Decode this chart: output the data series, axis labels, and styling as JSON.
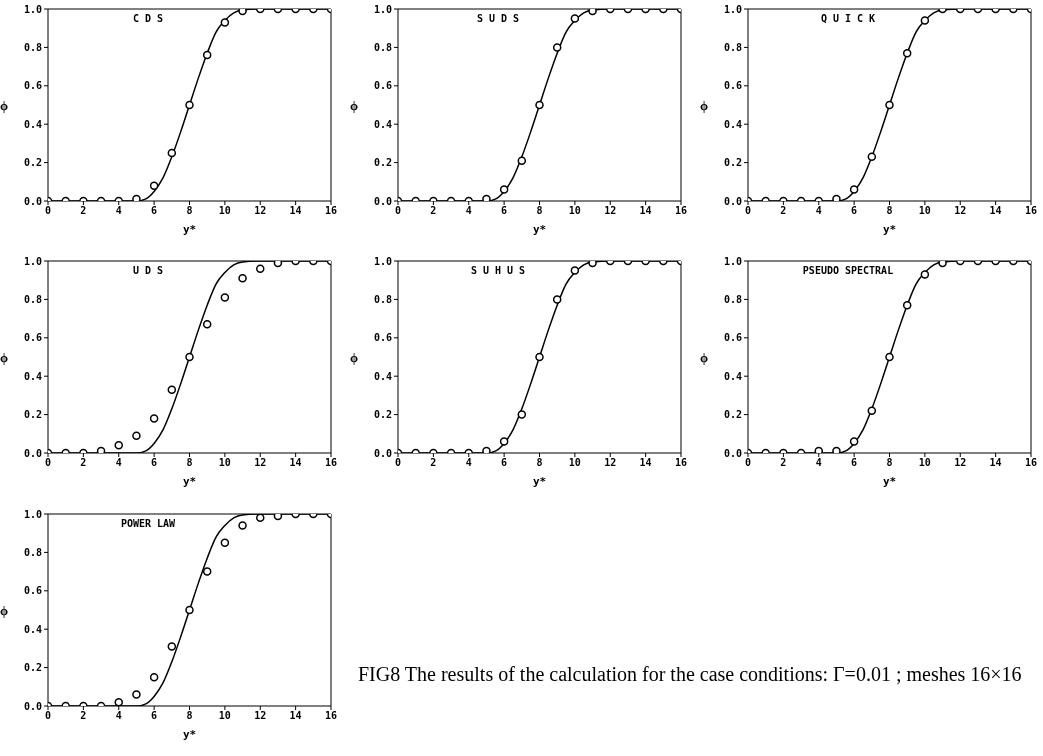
{
  "chart_data": [
    {
      "type": "line",
      "title": "C D S",
      "xlabel": "y*",
      "ylabel": "ϕ",
      "xlim": [
        0,
        16
      ],
      "xticks": [
        0,
        2,
        4,
        6,
        8,
        10,
        12,
        14,
        16
      ],
      "ylim": [
        0,
        1
      ],
      "yticks": [
        {
          "value": 0,
          "label": "0.0"
        },
        {
          "value": 0.2,
          "label": "0.2"
        },
        {
          "value": 0.4,
          "label": "0.4"
        },
        {
          "value": 0.6,
          "label": "0.6"
        },
        {
          "value": 0.8,
          "label": "0.8"
        },
        {
          "value": 1,
          "label": "1.0"
        }
      ],
      "grid": false,
      "series": [
        {
          "color": "#000000",
          "marker": "none",
          "x": [
            0,
            1,
            2,
            3,
            4,
            5,
            5.5,
            6,
            6.5,
            7,
            7.5,
            8,
            8.5,
            9,
            9.5,
            10,
            10.5,
            11,
            12,
            13,
            14,
            15,
            16
          ],
          "values": [
            0,
            0,
            0,
            0,
            0,
            0,
            0.01,
            0.05,
            0.12,
            0.23,
            0.36,
            0.5,
            0.64,
            0.77,
            0.88,
            0.94,
            0.98,
            0.995,
            1,
            1,
            1,
            1,
            1
          ]
        },
        {
          "type": "scatter",
          "color": "#000000",
          "marker": "circle",
          "x": [
            0,
            1,
            2,
            3,
            4,
            5,
            6,
            7,
            8,
            9,
            10,
            11,
            12,
            13,
            14,
            15,
            16
          ],
          "values": [
            0,
            0,
            0,
            0,
            0,
            0.01,
            0.08,
            0.25,
            0.5,
            0.76,
            0.93,
            0.99,
            1,
            1,
            1,
            1,
            1
          ]
        }
      ]
    },
    {
      "type": "line",
      "title": "S U D S",
      "xlabel": "y*",
      "ylabel": "ϕ",
      "xlim": [
        0,
        16
      ],
      "xticks": [
        0,
        2,
        4,
        6,
        8,
        10,
        12,
        14,
        16
      ],
      "ylim": [
        0,
        1
      ],
      "yticks": [
        {
          "value": 0,
          "label": "0.0"
        },
        {
          "value": 0.2,
          "label": "0.2"
        },
        {
          "value": 0.4,
          "label": "0.4"
        },
        {
          "value": 0.6,
          "label": "0.6"
        },
        {
          "value": 0.8,
          "label": "0.8"
        },
        {
          "value": 1,
          "label": "1.0"
        }
      ],
      "grid": false,
      "series": [
        {
          "color": "#000000",
          "marker": "none",
          "x": [
            0,
            1,
            2,
            3,
            4,
            5,
            5.5,
            6,
            6.5,
            7,
            7.5,
            8,
            8.5,
            9,
            9.5,
            10,
            10.5,
            11,
            12,
            13,
            14,
            15,
            16
          ],
          "values": [
            0,
            0,
            0,
            0,
            0,
            0,
            0.01,
            0.05,
            0.12,
            0.23,
            0.36,
            0.5,
            0.64,
            0.77,
            0.88,
            0.94,
            0.98,
            0.995,
            1,
            1,
            1,
            1,
            1
          ]
        },
        {
          "type": "scatter",
          "color": "#000000",
          "marker": "circle",
          "x": [
            0,
            1,
            2,
            3,
            4,
            5,
            6,
            7,
            8,
            9,
            10,
            11,
            12,
            13,
            14,
            15,
            16
          ],
          "values": [
            0,
            0,
            0,
            0,
            0,
            0.01,
            0.06,
            0.21,
            0.5,
            0.8,
            0.95,
            0.99,
            1,
            1,
            1,
            1,
            1
          ]
        }
      ]
    },
    {
      "type": "line",
      "title": "Q U I C K",
      "xlabel": "y*",
      "ylabel": "ϕ",
      "xlim": [
        0,
        16
      ],
      "xticks": [
        0,
        2,
        4,
        6,
        8,
        10,
        12,
        14,
        16
      ],
      "ylim": [
        0,
        1
      ],
      "yticks": [
        {
          "value": 0,
          "label": "0.0"
        },
        {
          "value": 0.2,
          "label": "0.2"
        },
        {
          "value": 0.4,
          "label": "0.4"
        },
        {
          "value": 0.6,
          "label": "0.6"
        },
        {
          "value": 0.8,
          "label": "0.8"
        },
        {
          "value": 1,
          "label": "1.0"
        }
      ],
      "grid": false,
      "series": [
        {
          "color": "#000000",
          "marker": "none",
          "x": [
            0,
            1,
            2,
            3,
            4,
            5,
            5.5,
            6,
            6.5,
            7,
            7.5,
            8,
            8.5,
            9,
            9.5,
            10,
            10.5,
            11,
            12,
            13,
            14,
            15,
            16
          ],
          "values": [
            0,
            0,
            0,
            0,
            0,
            0,
            0.01,
            0.05,
            0.12,
            0.23,
            0.36,
            0.5,
            0.64,
            0.77,
            0.88,
            0.94,
            0.98,
            0.995,
            1,
            1,
            1,
            1,
            1
          ]
        },
        {
          "type": "scatter",
          "color": "#000000",
          "marker": "circle",
          "x": [
            0,
            1,
            2,
            3,
            4,
            5,
            6,
            7,
            8,
            9,
            10,
            11,
            12,
            13,
            14,
            15,
            16
          ],
          "values": [
            0,
            0,
            0,
            0,
            0,
            0.01,
            0.06,
            0.23,
            0.5,
            0.77,
            0.94,
            1,
            1,
            1,
            1,
            1,
            1
          ]
        }
      ]
    },
    {
      "type": "line",
      "title": "U D S",
      "xlabel": "y*",
      "ylabel": "ϕ",
      "xlim": [
        0,
        16
      ],
      "xticks": [
        0,
        2,
        4,
        6,
        8,
        10,
        12,
        14,
        16
      ],
      "ylim": [
        0,
        1
      ],
      "yticks": [
        {
          "value": 0,
          "label": "0.0"
        },
        {
          "value": 0.2,
          "label": "0.2"
        },
        {
          "value": 0.4,
          "label": "0.4"
        },
        {
          "value": 0.6,
          "label": "0.6"
        },
        {
          "value": 0.8,
          "label": "0.8"
        },
        {
          "value": 1,
          "label": "1.0"
        }
      ],
      "grid": false,
      "series": [
        {
          "color": "#000000",
          "marker": "none",
          "x": [
            0,
            1,
            2,
            3,
            4,
            5,
            5.5,
            6,
            6.5,
            7,
            7.5,
            8,
            8.5,
            9,
            9.5,
            10,
            10.5,
            11,
            12,
            13,
            14,
            15,
            16
          ],
          "values": [
            0,
            0,
            0,
            0,
            0,
            0,
            0.01,
            0.05,
            0.12,
            0.23,
            0.36,
            0.5,
            0.64,
            0.77,
            0.88,
            0.94,
            0.98,
            0.995,
            1,
            1,
            1,
            1,
            1
          ]
        },
        {
          "type": "scatter",
          "color": "#000000",
          "marker": "circle",
          "x": [
            0,
            1,
            2,
            3,
            4,
            5,
            6,
            7,
            8,
            9,
            10,
            11,
            12,
            13,
            14,
            15,
            16
          ],
          "values": [
            0,
            0,
            0,
            0.01,
            0.04,
            0.09,
            0.18,
            0.33,
            0.5,
            0.67,
            0.81,
            0.91,
            0.96,
            0.99,
            1,
            1,
            1
          ]
        }
      ]
    },
    {
      "type": "line",
      "title": "S U H U S",
      "xlabel": "y*",
      "ylabel": "ϕ",
      "xlim": [
        0,
        16
      ],
      "xticks": [
        0,
        2,
        4,
        6,
        8,
        10,
        12,
        14,
        16
      ],
      "ylim": [
        0,
        1
      ],
      "yticks": [
        {
          "value": 0,
          "label": "0.0"
        },
        {
          "value": 0.2,
          "label": "0.2"
        },
        {
          "value": 0.4,
          "label": "0.4"
        },
        {
          "value": 0.6,
          "label": "0.6"
        },
        {
          "value": 0.8,
          "label": "0.8"
        },
        {
          "value": 1,
          "label": "1.0"
        }
      ],
      "grid": false,
      "series": [
        {
          "color": "#000000",
          "marker": "none",
          "x": [
            0,
            1,
            2,
            3,
            4,
            5,
            5.5,
            6,
            6.5,
            7,
            7.5,
            8,
            8.5,
            9,
            9.5,
            10,
            10.5,
            11,
            12,
            13,
            14,
            15,
            16
          ],
          "values": [
            0,
            0,
            0,
            0,
            0,
            0,
            0.01,
            0.05,
            0.12,
            0.23,
            0.36,
            0.5,
            0.64,
            0.77,
            0.88,
            0.94,
            0.98,
            0.995,
            1,
            1,
            1,
            1,
            1
          ]
        },
        {
          "type": "scatter",
          "color": "#000000",
          "marker": "circle",
          "x": [
            0,
            1,
            2,
            3,
            4,
            5,
            6,
            7,
            8,
            9,
            10,
            11,
            12,
            13,
            14,
            15,
            16
          ],
          "values": [
            0,
            0,
            0,
            0,
            0,
            0.01,
            0.06,
            0.2,
            0.5,
            0.8,
            0.95,
            0.99,
            1,
            1,
            1,
            1,
            1
          ]
        }
      ]
    },
    {
      "type": "line",
      "title": "PSEUDO SPECTRAL",
      "xlabel": "y*",
      "ylabel": "ϕ",
      "xlim": [
        0,
        16
      ],
      "xticks": [
        0,
        2,
        4,
        6,
        8,
        10,
        12,
        14,
        16
      ],
      "ylim": [
        0,
        1
      ],
      "yticks": [
        {
          "value": 0,
          "label": "0.0"
        },
        {
          "value": 0.2,
          "label": "0.2"
        },
        {
          "value": 0.4,
          "label": "0.4"
        },
        {
          "value": 0.6,
          "label": "0.6"
        },
        {
          "value": 0.8,
          "label": "0.8"
        },
        {
          "value": 1,
          "label": "1.0"
        }
      ],
      "grid": false,
      "series": [
        {
          "color": "#000000",
          "marker": "none",
          "x": [
            0,
            1,
            2,
            3,
            4,
            5,
            5.5,
            6,
            6.5,
            7,
            7.5,
            8,
            8.5,
            9,
            9.5,
            10,
            10.5,
            11,
            12,
            13,
            14,
            15,
            16
          ],
          "values": [
            0,
            0,
            0,
            0,
            0,
            0,
            0.01,
            0.05,
            0.12,
            0.23,
            0.36,
            0.5,
            0.64,
            0.77,
            0.88,
            0.94,
            0.98,
            0.995,
            1,
            1,
            1,
            1,
            1
          ]
        },
        {
          "type": "scatter",
          "color": "#000000",
          "marker": "circle",
          "x": [
            0,
            1,
            2,
            3,
            4,
            5,
            6,
            7,
            8,
            9,
            10,
            11,
            12,
            13,
            14,
            15,
            16
          ],
          "values": [
            0,
            0,
            0,
            0,
            0.01,
            0.01,
            0.06,
            0.22,
            0.5,
            0.77,
            0.93,
            0.99,
            1,
            1,
            1,
            1,
            1
          ]
        }
      ]
    },
    {
      "type": "line",
      "title": "POWER LAW",
      "xlabel": "y*",
      "ylabel": "ϕ",
      "xlim": [
        0,
        16
      ],
      "xticks": [
        0,
        2,
        4,
        6,
        8,
        10,
        12,
        14,
        16
      ],
      "ylim": [
        0,
        1
      ],
      "yticks": [
        {
          "value": 0,
          "label": "0.0"
        },
        {
          "value": 0.2,
          "label": "0.2"
        },
        {
          "value": 0.4,
          "label": "0.4"
        },
        {
          "value": 0.6,
          "label": "0.6"
        },
        {
          "value": 0.8,
          "label": "0.8"
        },
        {
          "value": 1,
          "label": "1.0"
        }
      ],
      "grid": false,
      "annotations": [
        "FIG8 The results of the calculation for the case conditions: Γ=0.01 ; meshes 16×16"
      ],
      "series": [
        {
          "color": "#000000",
          "marker": "none",
          "x": [
            0,
            1,
            2,
            3,
            4,
            5,
            5.5,
            6,
            6.5,
            7,
            7.5,
            8,
            8.5,
            9,
            9.5,
            10,
            10.5,
            11,
            12,
            13,
            14,
            15,
            16
          ],
          "values": [
            0,
            0,
            0,
            0,
            0,
            0,
            0.01,
            0.05,
            0.12,
            0.23,
            0.36,
            0.5,
            0.64,
            0.77,
            0.88,
            0.94,
            0.98,
            0.995,
            1,
            1,
            1,
            1,
            1
          ]
        },
        {
          "type": "scatter",
          "color": "#000000",
          "marker": "circle",
          "x": [
            0,
            1,
            2,
            3,
            4,
            5,
            6,
            7,
            8,
            9,
            10,
            11,
            12,
            13,
            14,
            15,
            16
          ],
          "values": [
            0,
            0,
            0,
            0,
            0.02,
            0.06,
            0.15,
            0.31,
            0.5,
            0.7,
            0.85,
            0.94,
            0.98,
            0.99,
            1,
            1,
            1
          ]
        }
      ]
    }
  ]
}
